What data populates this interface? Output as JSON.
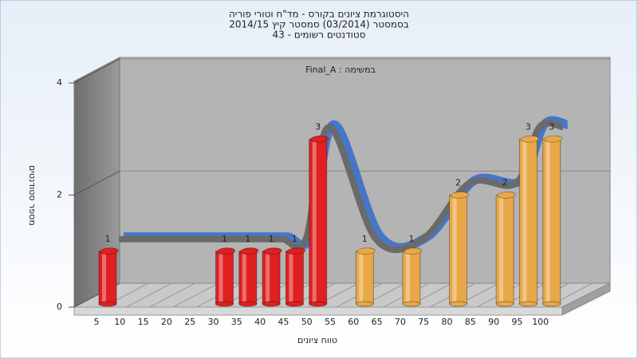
{
  "chart_data": {
    "type": "bar3d",
    "title": [
      "היסטוגרמת ציונים בקורס - מד\"ח וטורי פוריה",
      "בסמסטר  (03/2014)  סמסטר קיץ 2014/15",
      "סטודנטים רשומים - 43"
    ],
    "annotation": "Final_A : במשימה",
    "x_label": "טווח ציונים",
    "y_label": "מספר סטודנטים",
    "categories": [
      "5",
      "10",
      "15",
      "20",
      "25",
      "30",
      "35",
      "40",
      "45",
      "50",
      "55",
      "60",
      "65",
      "70",
      "75",
      "80",
      "85",
      "90",
      "95",
      "100"
    ],
    "series": [
      {
        "color": "#e02020",
        "values": [
          1,
          null,
          null,
          null,
          null,
          1,
          1,
          1,
          1,
          3,
          null,
          null,
          null,
          null,
          null,
          null,
          null,
          null,
          null,
          null
        ]
      },
      {
        "color": "#e8a848",
        "values": [
          null,
          null,
          null,
          null,
          null,
          null,
          null,
          null,
          null,
          null,
          null,
          1,
          null,
          1,
          null,
          2,
          null,
          2,
          3,
          3
        ]
      }
    ],
    "ylim": [
      0,
      4
    ],
    "yticks": [
      0,
      2,
      4
    ],
    "grid": true
  }
}
